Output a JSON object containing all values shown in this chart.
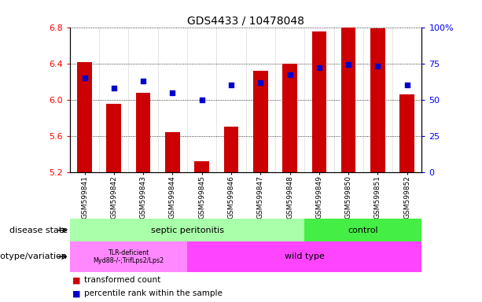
{
  "title": "GDS4433 / 10478048",
  "samples": [
    "GSM599841",
    "GSM599842",
    "GSM599843",
    "GSM599844",
    "GSM599845",
    "GSM599846",
    "GSM599847",
    "GSM599848",
    "GSM599849",
    "GSM599850",
    "GSM599851",
    "GSM599852"
  ],
  "bar_values": [
    6.41,
    5.95,
    6.08,
    5.64,
    5.32,
    5.7,
    6.32,
    6.4,
    6.75,
    6.8,
    6.79,
    6.06
  ],
  "percentile_values": [
    65,
    58,
    63,
    55,
    50,
    60,
    62,
    67,
    72,
    74,
    73,
    60
  ],
  "ylim_left": [
    5.2,
    6.8
  ],
  "ylim_right": [
    0,
    100
  ],
  "bar_color": "#cc0000",
  "dot_color": "#0000cc",
  "grid_color": "#000000",
  "bg_color": "#ffffff",
  "disease_state_labels": [
    "septic peritonitis",
    "control"
  ],
  "disease_state_colors": [
    "#aaffaa",
    "#44ee44"
  ],
  "genotype_labels": [
    "TLR-deficient\nMyd88-/-;TrifLps2/Lps2",
    "wild type"
  ],
  "genotype_colors": [
    "#ff88ff",
    "#ff44ff"
  ],
  "legend_items": [
    "transformed count",
    "percentile rank within the sample"
  ],
  "legend_colors": [
    "#cc0000",
    "#0000cc"
  ],
  "yticks_left": [
    5.2,
    5.6,
    6.0,
    6.4,
    6.8
  ],
  "yticks_right": [
    0,
    25,
    50,
    75,
    100
  ],
  "ytick_right_labels": [
    "0",
    "25",
    "50",
    "75",
    "100%"
  ]
}
